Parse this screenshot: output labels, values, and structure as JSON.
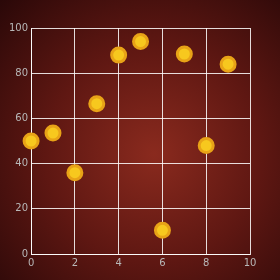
{
  "chart_data": {
    "type": "scatter",
    "x": [
      4.0,
      5.0,
      7.0,
      9.0,
      3.0,
      0.0,
      1.0,
      2.0,
      8.0,
      6.0
    ],
    "values": [
      88,
      94,
      88.5,
      84,
      66.5,
      50,
      53.5,
      36,
      48,
      10.5
    ],
    "color": "#e8a317",
    "marker": "circle",
    "xlim": [
      0,
      10
    ],
    "xticks": [
      0,
      2,
      4,
      6,
      8,
      10
    ],
    "ylim": [
      0,
      100
    ],
    "yticks": [
      0,
      20,
      40,
      60,
      80,
      100
    ],
    "grid": true
  }
}
